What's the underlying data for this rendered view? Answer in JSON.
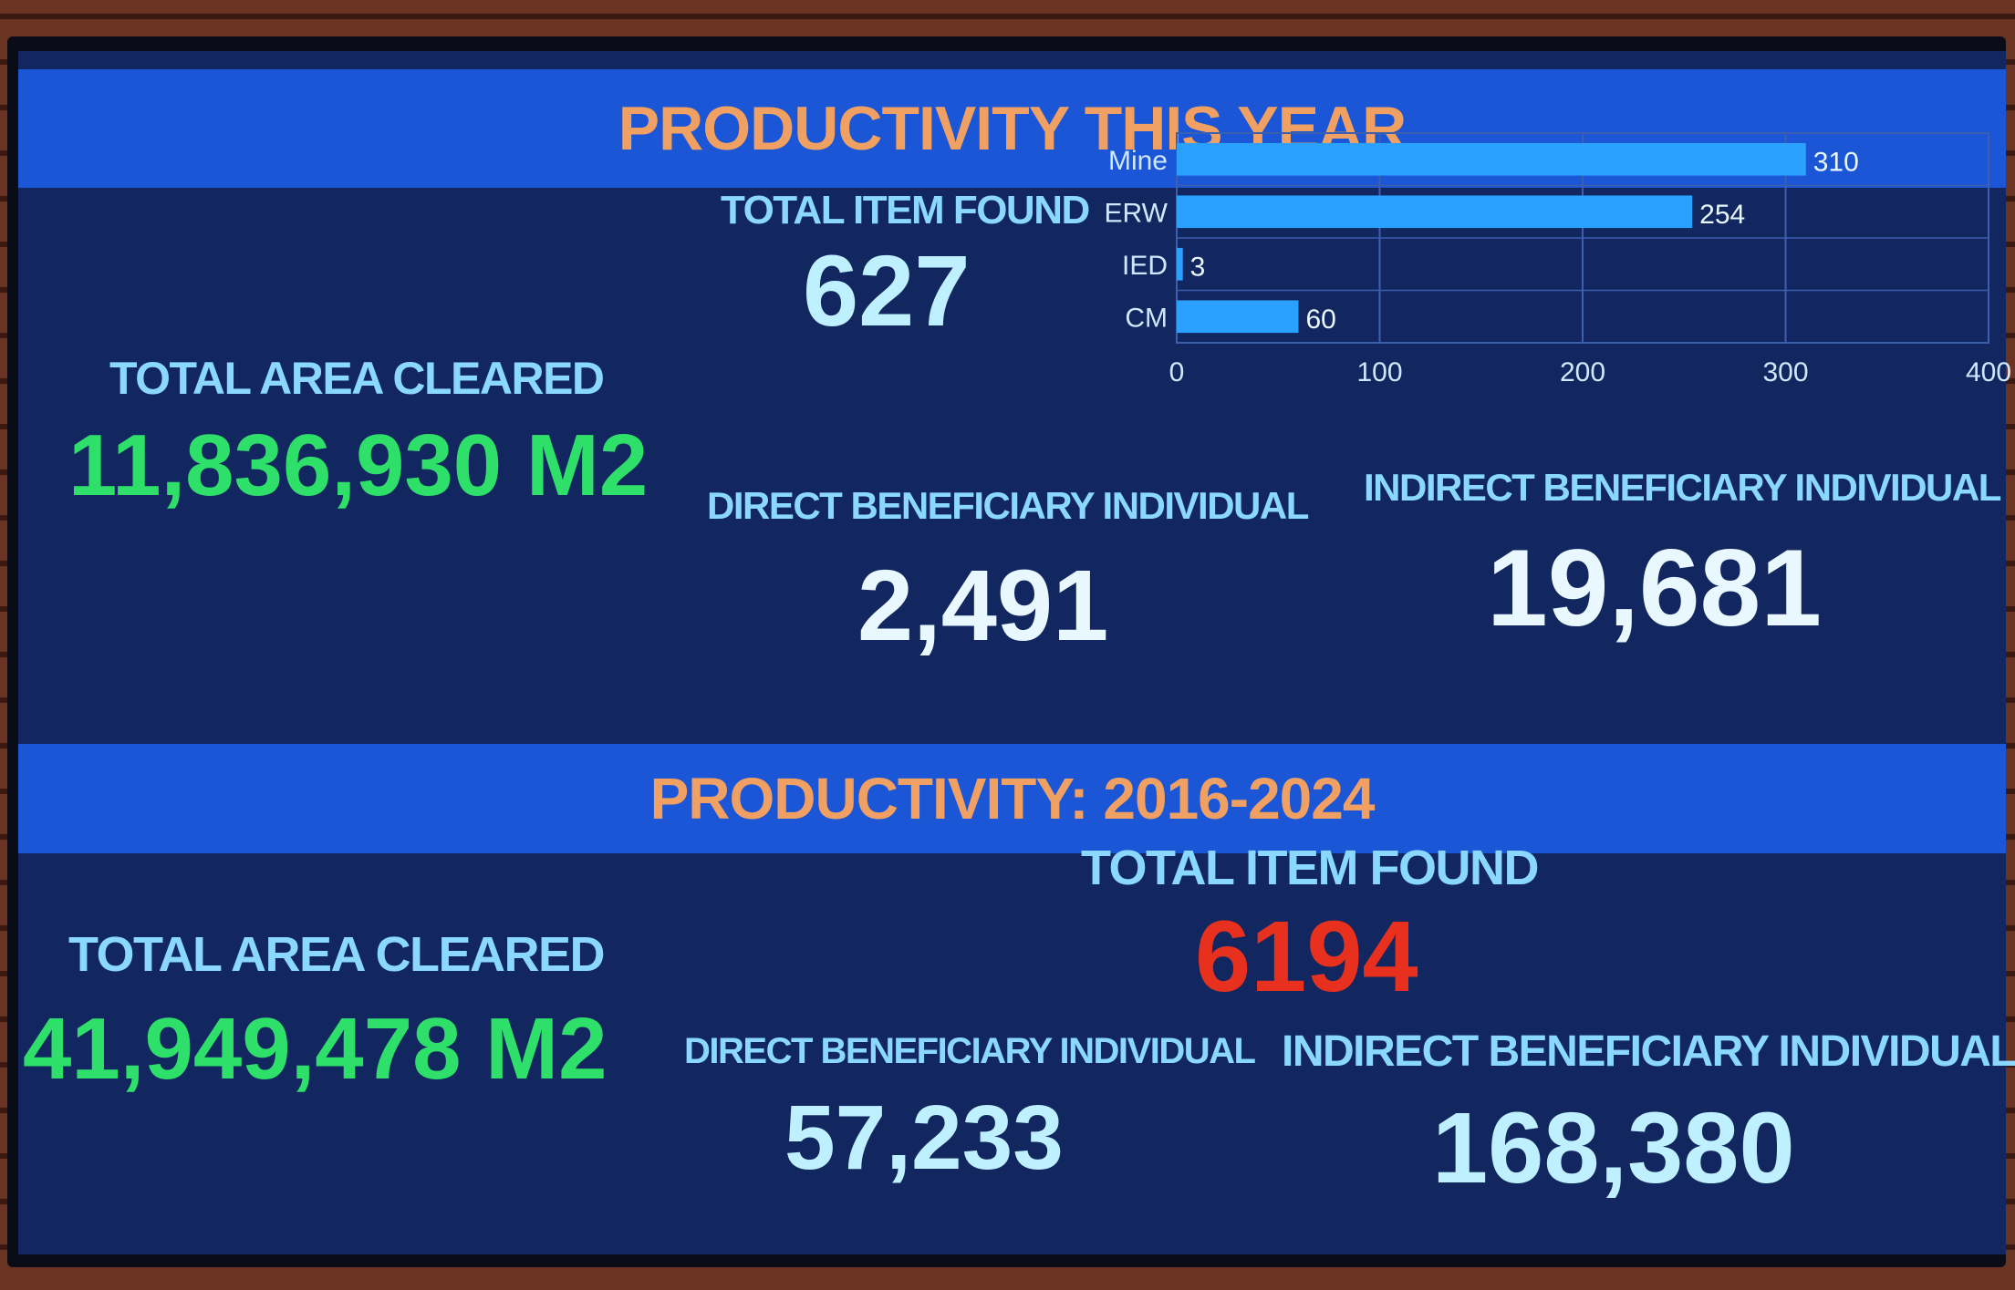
{
  "this_year": {
    "title": "PRODUCTIVITY THIS YEAR",
    "total_item_found_label": "TOTAL ITEM FOUND",
    "total_item_found_value": "627",
    "total_area_label": "TOTAL AREA CLEARED",
    "total_area_value": "11,836,930 M2",
    "direct_label": "DIRECT BENEFICIARY INDIVIDUAL",
    "direct_value": "2,491",
    "indirect_label": "INDIRECT BENEFICIARY INDIVIDUAL",
    "indirect_value": "19,681"
  },
  "chart_data": {
    "type": "bar",
    "orientation": "horizontal",
    "categories": [
      "Mine",
      "ERW",
      "IED",
      "CM"
    ],
    "values": [
      310,
      254,
      3,
      60
    ],
    "xlim": [
      0,
      400
    ],
    "xticks": [
      0,
      100,
      200,
      300,
      400
    ],
    "grid": true,
    "bar_color": "#2aa0ff"
  },
  "all_time": {
    "title": "PRODUCTIVITY: 2016-2024",
    "total_item_found_label": "TOTAL ITEM FOUND",
    "total_item_found_value": "6194",
    "total_area_label": "TOTAL AREA CLEARED",
    "total_area_value": "41,949,478 M2",
    "direct_label": "DIRECT BENEFICIARY INDIVIDUAL",
    "direct_value": "57,233",
    "indirect_label": "INDIRECT BENEFICIARY INDIVIDUAL",
    "indirect_value": "168,380"
  },
  "colors": {
    "band": "#1a56d6",
    "background": "#12275f",
    "title": "#f0a063",
    "label": "#8ad8ff",
    "area_value": "#2ee06a",
    "highlight_value": "#e8301e"
  }
}
